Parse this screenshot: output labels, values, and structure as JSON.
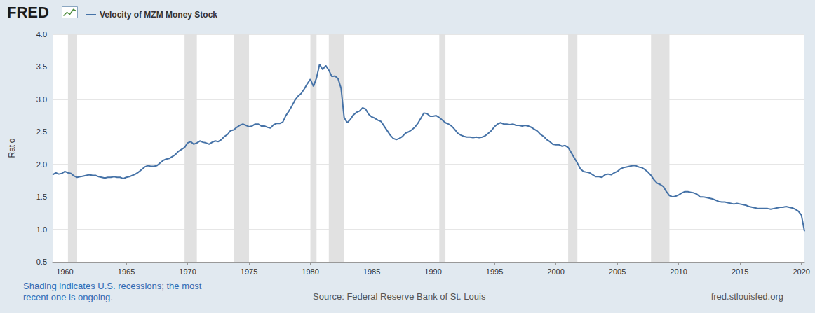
{
  "chart_data": {
    "type": "line",
    "logo": "FRED",
    "note": "Shading indicates U.S. recessions; the most recent one is ongoing.",
    "source": "Source: Federal Reserve Bank of St. Louis",
    "site": "fred.stlouisfed.org",
    "y_label": "Ratio",
    "grid": true,
    "legend": "top-left",
    "xlim": [
      1959,
      2020.25
    ],
    "xticks": [
      1960,
      1965,
      1970,
      1975,
      1980,
      1985,
      1990,
      1995,
      2000,
      2005,
      2010,
      2015,
      2020
    ],
    "ylim": [
      0.5,
      4.0
    ],
    "yticks": [
      0.5,
      {
        "value": 1,
        "label": "1.0"
      },
      1.5,
      {
        "value": 2,
        "label": "2.0"
      },
      2.5,
      {
        "value": 3,
        "label": "3.0"
      },
      3.5,
      {
        "value": 4,
        "label": "4.0"
      }
    ],
    "recessions": [
      [
        1960.25,
        1961.0
      ],
      [
        1969.75,
        1970.75
      ],
      [
        1973.75,
        1975.0
      ],
      [
        1980.0,
        1980.5
      ],
      [
        1981.5,
        1982.75
      ],
      [
        1990.5,
        1991.0
      ],
      [
        2001.0,
        2001.75
      ],
      [
        2007.75,
        2009.25
      ]
    ],
    "x": [
      1959,
      1959.25,
      1959.5,
      1959.75,
      1960,
      1960.25,
      1960.5,
      1960.75,
      1961,
      1961.25,
      1961.5,
      1961.75,
      1962,
      1962.25,
      1962.5,
      1962.75,
      1963,
      1963.25,
      1963.5,
      1963.75,
      1964,
      1964.25,
      1964.5,
      1964.75,
      1965,
      1965.25,
      1965.5,
      1965.75,
      1966,
      1966.25,
      1966.5,
      1966.75,
      1967,
      1967.25,
      1967.5,
      1967.75,
      1968,
      1968.25,
      1968.5,
      1968.75,
      1969,
      1969.25,
      1969.5,
      1969.75,
      1970,
      1970.25,
      1970.5,
      1970.75,
      1971,
      1971.25,
      1971.5,
      1971.75,
      1972,
      1972.25,
      1972.5,
      1972.75,
      1973,
      1973.25,
      1973.5,
      1973.75,
      1974,
      1974.25,
      1974.5,
      1974.75,
      1975,
      1975.25,
      1975.5,
      1975.75,
      1976,
      1976.25,
      1976.5,
      1976.75,
      1977,
      1977.25,
      1977.5,
      1977.75,
      1978,
      1978.25,
      1978.5,
      1978.75,
      1979,
      1979.25,
      1979.5,
      1979.75,
      1980,
      1980.25,
      1980.5,
      1980.75,
      1981,
      1981.25,
      1981.5,
      1981.75,
      1982,
      1982.25,
      1982.5,
      1982.75,
      1983,
      1983.25,
      1983.5,
      1983.75,
      1984,
      1984.25,
      1984.5,
      1984.75,
      1985,
      1985.25,
      1985.5,
      1985.75,
      1986,
      1986.25,
      1986.5,
      1986.75,
      1987,
      1987.25,
      1987.5,
      1987.75,
      1988,
      1988.25,
      1988.5,
      1988.75,
      1989,
      1989.25,
      1989.5,
      1989.75,
      1990,
      1990.25,
      1990.5,
      1990.75,
      1991,
      1991.25,
      1991.5,
      1991.75,
      1992,
      1992.25,
      1992.5,
      1992.75,
      1993,
      1993.25,
      1993.5,
      1993.75,
      1994,
      1994.25,
      1994.5,
      1994.75,
      1995,
      1995.25,
      1995.5,
      1995.75,
      1996,
      1996.25,
      1996.5,
      1996.75,
      1997,
      1997.25,
      1997.5,
      1997.75,
      1998,
      1998.25,
      1998.5,
      1998.75,
      1999,
      1999.25,
      1999.5,
      1999.75,
      2000,
      2000.25,
      2000.5,
      2000.75,
      2001,
      2001.25,
      2001.5,
      2001.75,
      2002,
      2002.25,
      2002.5,
      2002.75,
      2003,
      2003.25,
      2003.5,
      2003.75,
      2004,
      2004.25,
      2004.5,
      2004.75,
      2005,
      2005.25,
      2005.5,
      2005.75,
      2006,
      2006.25,
      2006.5,
      2006.75,
      2007,
      2007.25,
      2007.5,
      2007.75,
      2008,
      2008.25,
      2008.5,
      2008.75,
      2009,
      2009.25,
      2009.5,
      2009.75,
      2010,
      2010.25,
      2010.5,
      2010.75,
      2011,
      2011.25,
      2011.5,
      2011.75,
      2012,
      2012.25,
      2012.5,
      2012.75,
      2013,
      2013.25,
      2013.5,
      2013.75,
      2014,
      2014.25,
      2014.5,
      2014.75,
      2015,
      2015.25,
      2015.5,
      2015.75,
      2016,
      2016.25,
      2016.5,
      2016.75,
      2017,
      2017.25,
      2017.5,
      2017.75,
      2018,
      2018.25,
      2018.5,
      2018.75,
      2019,
      2019.25,
      2019.5,
      2019.75,
      2020,
      2020.25
    ],
    "series": [
      {
        "name": "Velocity of MZM Money Stock",
        "color": "#4572a7",
        "values": [
          1.84,
          1.87,
          1.85,
          1.86,
          1.89,
          1.87,
          1.86,
          1.82,
          1.8,
          1.81,
          1.82,
          1.83,
          1.84,
          1.83,
          1.83,
          1.81,
          1.8,
          1.79,
          1.8,
          1.8,
          1.81,
          1.8,
          1.8,
          1.78,
          1.8,
          1.81,
          1.83,
          1.85,
          1.88,
          1.92,
          1.96,
          1.98,
          1.97,
          1.97,
          1.98,
          2.02,
          2.06,
          2.08,
          2.09,
          2.12,
          2.15,
          2.2,
          2.23,
          2.26,
          2.33,
          2.35,
          2.31,
          2.33,
          2.36,
          2.34,
          2.33,
          2.31,
          2.34,
          2.36,
          2.35,
          2.38,
          2.43,
          2.46,
          2.52,
          2.53,
          2.57,
          2.6,
          2.62,
          2.6,
          2.58,
          2.59,
          2.62,
          2.62,
          2.59,
          2.59,
          2.57,
          2.56,
          2.61,
          2.63,
          2.63,
          2.65,
          2.75,
          2.82,
          2.9,
          2.99,
          3.05,
          3.09,
          3.16,
          3.24,
          3.31,
          3.2,
          3.33,
          3.54,
          3.46,
          3.52,
          3.45,
          3.35,
          3.36,
          3.32,
          3.17,
          2.72,
          2.64,
          2.69,
          2.76,
          2.8,
          2.82,
          2.87,
          2.85,
          2.77,
          2.73,
          2.71,
          2.68,
          2.66,
          2.59,
          2.52,
          2.45,
          2.4,
          2.38,
          2.4,
          2.43,
          2.48,
          2.5,
          2.53,
          2.57,
          2.63,
          2.71,
          2.79,
          2.78,
          2.74,
          2.74,
          2.75,
          2.72,
          2.68,
          2.64,
          2.62,
          2.59,
          2.54,
          2.48,
          2.45,
          2.43,
          2.42,
          2.42,
          2.41,
          2.42,
          2.41,
          2.42,
          2.44,
          2.48,
          2.52,
          2.58,
          2.62,
          2.64,
          2.62,
          2.62,
          2.61,
          2.62,
          2.6,
          2.6,
          2.59,
          2.6,
          2.59,
          2.57,
          2.54,
          2.51,
          2.46,
          2.43,
          2.38,
          2.35,
          2.31,
          2.3,
          2.3,
          2.28,
          2.29,
          2.26,
          2.18,
          2.1,
          2.02,
          1.93,
          1.89,
          1.88,
          1.87,
          1.84,
          1.81,
          1.81,
          1.8,
          1.84,
          1.85,
          1.84,
          1.87,
          1.89,
          1.93,
          1.95,
          1.96,
          1.97,
          1.98,
          1.98,
          1.96,
          1.95,
          1.92,
          1.88,
          1.83,
          1.76,
          1.71,
          1.69,
          1.66,
          1.58,
          1.52,
          1.5,
          1.51,
          1.53,
          1.56,
          1.58,
          1.58,
          1.57,
          1.56,
          1.54,
          1.5,
          1.5,
          1.49,
          1.48,
          1.47,
          1.45,
          1.43,
          1.42,
          1.42,
          1.41,
          1.4,
          1.39,
          1.4,
          1.39,
          1.38,
          1.37,
          1.35,
          1.34,
          1.33,
          1.32,
          1.32,
          1.32,
          1.32,
          1.31,
          1.32,
          1.33,
          1.34,
          1.34,
          1.35,
          1.34,
          1.33,
          1.31,
          1.28,
          1.22,
          0.97
        ]
      }
    ]
  }
}
